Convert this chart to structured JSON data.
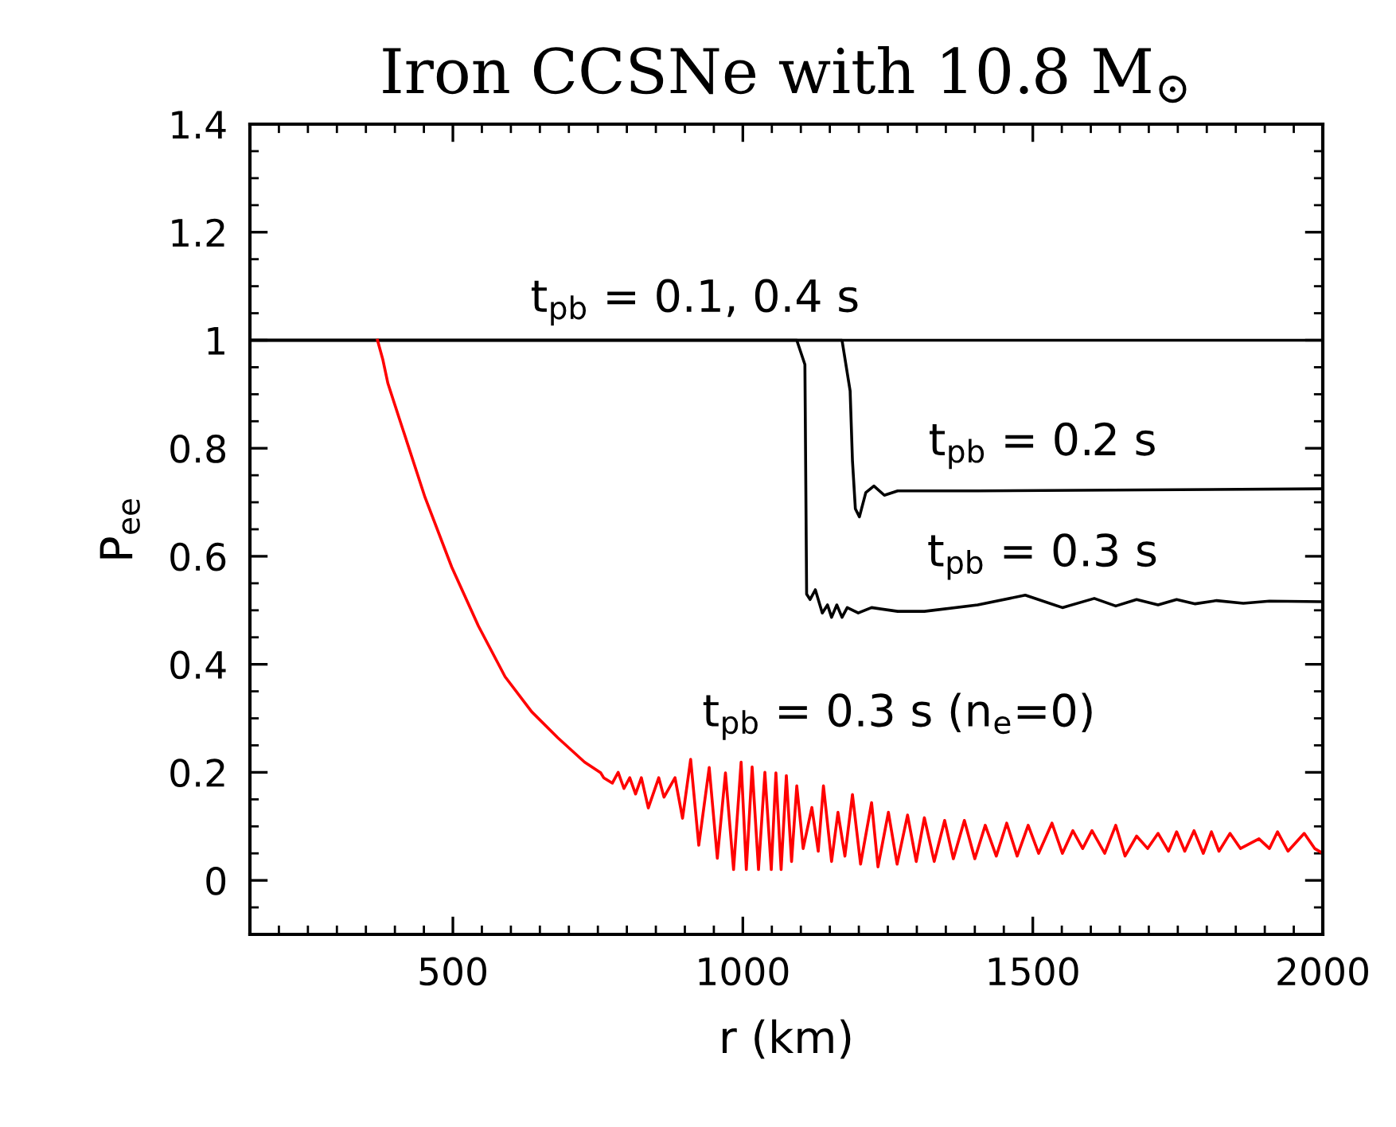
{
  "chart_data": {
    "type": "line",
    "title": "Iron CCSNe with 10.8 M$_{⊙}$",
    "xlabel": "r (km)",
    "ylabel": "P$_{ee}$",
    "xlim": [
      150,
      2000
    ],
    "xticks": [
      500,
      1000,
      1500,
      2000
    ],
    "ylim": [
      -0.1,
      1.4
    ],
    "yticks": [
      0,
      0.2,
      0.4,
      0.6,
      0.8,
      1,
      1.2,
      1.4
    ],
    "grid": false,
    "line_style": "solid",
    "marker": "none",
    "series": [
      {
        "name": "t$_{pb}$ = 0.1, 0.4 s",
        "color": "#000000",
        "x": [
          150,
          2000
        ],
        "values": [
          1,
          1
        ]
      },
      {
        "name": "t$_{pb}$ = 0.2 s",
        "color": "#000000",
        "x": [
          150,
          1171,
          1185,
          1189,
          1194,
          1201,
          1212,
          1226,
          1244,
          1267,
          1405,
          2000
        ],
        "values": [
          1,
          1,
          0.906,
          0.777,
          0.688,
          0.673,
          0.718,
          0.73,
          0.713,
          0.721,
          0.721,
          0.725
        ]
      },
      {
        "name": "t$_{pb}$ = 0.3 s",
        "color": "#000000",
        "x": [
          150,
          1093,
          1107,
          1110,
          1116,
          1125,
          1137,
          1146,
          1153,
          1162,
          1171,
          1180,
          1199,
          1222,
          1267,
          1313,
          1405,
          1487,
          1551,
          1606,
          1643,
          1679,
          1716,
          1748,
          1780,
          1817,
          1863,
          1908,
          2000
        ],
        "values": [
          1,
          1,
          0.955,
          0.53,
          0.52,
          0.538,
          0.495,
          0.51,
          0.487,
          0.51,
          0.487,
          0.505,
          0.495,
          0.505,
          0.498,
          0.498,
          0.51,
          0.528,
          0.505,
          0.522,
          0.508,
          0.52,
          0.51,
          0.52,
          0.512,
          0.518,
          0.513,
          0.517,
          0.516
        ]
      },
      {
        "name": "t$_{pb}$ = 0.3 s (n$_{e}$=0)",
        "color": "#ff0000",
        "x": [
          370,
          379,
          388,
          407,
          452,
          498,
          544,
          590,
          636,
          681,
          727,
          755,
          760,
          775,
          785,
          795,
          805,
          815,
          825,
          837,
          855,
          864,
          883,
          896,
          910,
          924,
          942,
          956,
          970,
          984,
          997,
          1006,
          1016,
          1027,
          1038,
          1049,
          1057,
          1066,
          1075,
          1084,
          1093,
          1104,
          1119,
          1130,
          1139,
          1153,
          1164,
          1176,
          1189,
          1203,
          1222,
          1233,
          1251,
          1266,
          1284,
          1299,
          1313,
          1330,
          1348,
          1363,
          1382,
          1400,
          1418,
          1437,
          1455,
          1473,
          1492,
          1510,
          1533,
          1551,
          1569,
          1586,
          1602,
          1624,
          1643,
          1659,
          1679,
          1698,
          1716,
          1734,
          1748,
          1762,
          1778,
          1794,
          1808,
          1821,
          1840,
          1858,
          1890,
          1908,
          1922,
          1940,
          1968,
          1986,
          2000
        ],
        "values": [
          1,
          0.965,
          0.92,
          0.857,
          0.709,
          0.58,
          0.471,
          0.377,
          0.312,
          0.264,
          0.219,
          0.199,
          0.19,
          0.18,
          0.2,
          0.17,
          0.19,
          0.16,
          0.19,
          0.134,
          0.19,
          0.154,
          0.19,
          0.115,
          0.224,
          0.065,
          0.209,
          0.041,
          0.199,
          0.02,
          0.219,
          0.02,
          0.21,
          0.02,
          0.2,
          0.02,
          0.199,
          0.02,
          0.194,
          0.035,
          0.175,
          0.059,
          0.135,
          0.054,
          0.175,
          0.035,
          0.126,
          0.045,
          0.159,
          0.03,
          0.144,
          0.025,
          0.126,
          0.03,
          0.121,
          0.035,
          0.116,
          0.035,
          0.111,
          0.04,
          0.111,
          0.04,
          0.102,
          0.045,
          0.106,
          0.045,
          0.102,
          0.05,
          0.106,
          0.05,
          0.092,
          0.059,
          0.092,
          0.05,
          0.102,
          0.045,
          0.082,
          0.059,
          0.087,
          0.054,
          0.09,
          0.054,
          0.092,
          0.05,
          0.09,
          0.054,
          0.087,
          0.059,
          0.077,
          0.059,
          0.09,
          0.054,
          0.087,
          0.059,
          0.05
        ]
      }
    ]
  }
}
